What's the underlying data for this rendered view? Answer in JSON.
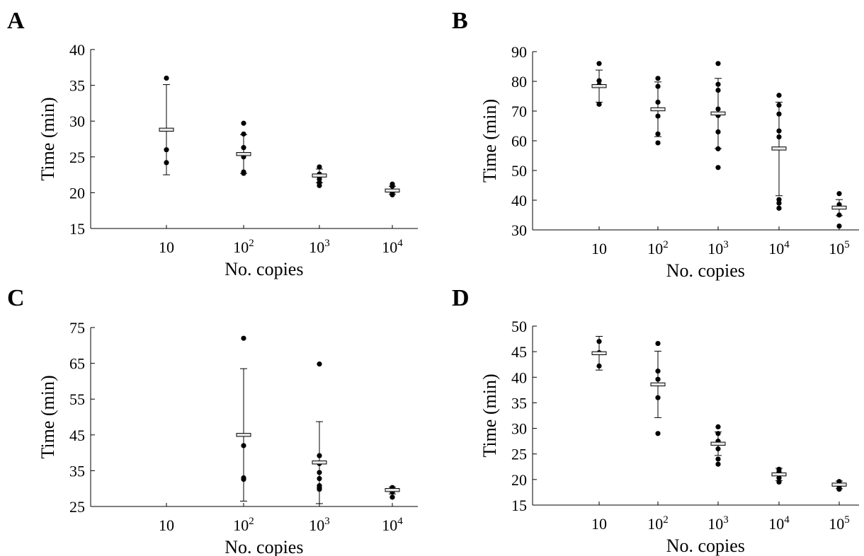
{
  "figure": {
    "panels": [
      "A",
      "B",
      "C",
      "D"
    ]
  },
  "chart_data": [
    {
      "panel": "A",
      "type": "scatter",
      "xlabel": "No. copies",
      "ylabel": "Time (min)",
      "ylim": [
        15,
        40
      ],
      "yticks": [
        15,
        20,
        25,
        30,
        35,
        40
      ],
      "categories": [
        {
          "base": "10",
          "exp": ""
        },
        {
          "base": "10",
          "exp": "2"
        },
        {
          "base": "10",
          "exp": "3"
        },
        {
          "base": "10",
          "exp": "4"
        }
      ],
      "groups": [
        {
          "points": [
            36.0,
            26.0,
            24.2
          ],
          "mean": 28.8,
          "err_low": 22.5,
          "err_high": 35.1
        },
        {
          "points": [
            29.7,
            28.2,
            26.3,
            25.0,
            22.9,
            22.7
          ],
          "mean": 25.4,
          "err_low": 22.7,
          "err_high": 28.1
        },
        {
          "points": [
            23.6,
            22.6,
            22.3,
            21.9,
            21.4,
            21.0
          ],
          "mean": 22.4,
          "err_low": 21.4,
          "err_high": 23.3
        },
        {
          "points": [
            21.2,
            20.9,
            20.1,
            19.8,
            19.7
          ],
          "mean": 20.3,
          "err_low": 19.8,
          "err_high": 20.9
        }
      ]
    },
    {
      "panel": "B",
      "type": "scatter",
      "xlabel": "No. copies",
      "ylabel": "Time (min)",
      "ylim": [
        30,
        90
      ],
      "yticks": [
        30,
        40,
        50,
        60,
        70,
        80,
        90
      ],
      "categories": [
        {
          "base": "10",
          "exp": ""
        },
        {
          "base": "10",
          "exp": "2"
        },
        {
          "base": "10",
          "exp": "3"
        },
        {
          "base": "10",
          "exp": "4"
        },
        {
          "base": "10",
          "exp": "5"
        }
      ],
      "groups": [
        {
          "points": [
            86.0,
            80.2,
            78.8,
            72.3
          ],
          "mean": 78.4,
          "err_low": 73.0,
          "err_high": 83.8
        },
        {
          "points": [
            81.0,
            78.3,
            73.0,
            68.3,
            62.3,
            59.3
          ],
          "mean": 70.6,
          "err_low": 61.4,
          "err_high": 79.8
        },
        {
          "points": [
            86.0,
            79.0,
            77.0,
            70.7,
            68.5,
            63.0,
            57.3,
            51.0
          ],
          "mean": 69.2,
          "err_low": 57.4,
          "err_high": 81.0
        },
        {
          "points": [
            75.3,
            72.0,
            69.0,
            63.3,
            61.3,
            40.2,
            39.0,
            37.3
          ],
          "mean": 57.4,
          "err_low": 41.5,
          "err_high": 73.0
        },
        {
          "points": [
            42.2,
            38.5,
            35.0,
            31.3
          ],
          "mean": 37.5,
          "err_low": 34.8,
          "err_high": 40.2
        }
      ]
    },
    {
      "panel": "C",
      "type": "scatter",
      "xlabel": "No. copies",
      "ylabel": "Time (min)",
      "ylim": [
        25,
        75
      ],
      "yticks": [
        25,
        35,
        45,
        55,
        65,
        75
      ],
      "categories": [
        {
          "base": "10",
          "exp": ""
        },
        {
          "base": "10",
          "exp": "2"
        },
        {
          "base": "10",
          "exp": "3"
        },
        {
          "base": "10",
          "exp": "4"
        }
      ],
      "groups": [
        {
          "points": [],
          "mean": null,
          "err_low": null,
          "err_high": null
        },
        {
          "points": [
            72.0,
            42.0,
            33.0,
            32.6
          ],
          "mean": 45.0,
          "err_low": 26.5,
          "err_high": 63.5
        },
        {
          "points": [
            64.8,
            39.2,
            37.0,
            34.5,
            32.8,
            30.8,
            30.2,
            29.8
          ],
          "mean": 37.3,
          "err_low": 25.8,
          "err_high": 48.7
        },
        {
          "points": [
            30.3,
            29.8,
            29.0,
            27.6
          ],
          "mean": 29.6,
          "err_low": 28.5,
          "err_high": 30.4
        }
      ]
    },
    {
      "panel": "D",
      "type": "scatter",
      "xlabel": "No. copies",
      "ylabel": "Time (min)",
      "ylim": [
        15,
        50
      ],
      "yticks": [
        15,
        20,
        25,
        30,
        35,
        40,
        45,
        50
      ],
      "categories": [
        {
          "base": "10",
          "exp": ""
        },
        {
          "base": "10",
          "exp": "2"
        },
        {
          "base": "10",
          "exp": "3"
        },
        {
          "base": "10",
          "exp": "4"
        },
        {
          "base": "10",
          "exp": "5"
        }
      ],
      "groups": [
        {
          "points": [
            47.0,
            44.8,
            42.2
          ],
          "mean": 44.7,
          "err_low": 41.4,
          "err_high": 48.0
        },
        {
          "points": [
            46.6,
            41.2,
            39.6,
            36.0,
            29.0
          ],
          "mean": 38.6,
          "err_low": 32.1,
          "err_high": 45.1
        },
        {
          "points": [
            30.3,
            29.0,
            27.5,
            26.0,
            24.0,
            23.0
          ],
          "mean": 27.0,
          "err_low": 24.7,
          "err_high": 29.3
        },
        {
          "points": [
            22.0,
            21.5,
            20.3,
            19.5
          ],
          "mean": 21.0,
          "err_low": 19.8,
          "err_high": 22.2
        },
        {
          "points": [
            19.6,
            19.0,
            18.4,
            18.1
          ],
          "mean": 19.0,
          "err_low": 18.2,
          "err_high": 19.7
        }
      ]
    }
  ]
}
